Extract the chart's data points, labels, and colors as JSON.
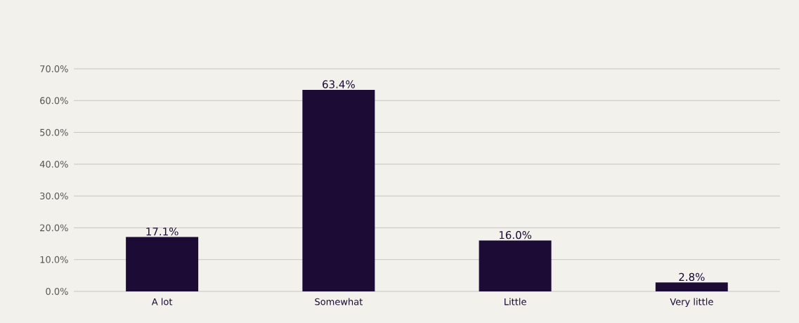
{
  "chart_data": {
    "type": "bar",
    "categories": [
      "A lot",
      "Somewhat",
      "Little",
      "Very little"
    ],
    "values": [
      17.1,
      63.4,
      16.0,
      2.8
    ],
    "value_labels": [
      "17.1%",
      "63.4%",
      "16.0%",
      "2.8%"
    ],
    "color": "#1c0b35",
    "ylim": [
      0,
      70
    ],
    "yticks": [
      {
        "value": 0,
        "label": "0.0%"
      },
      {
        "value": 10,
        "label": "10.0%"
      },
      {
        "value": 20,
        "label": "20.0%"
      },
      {
        "value": 30,
        "label": "30.0%"
      },
      {
        "value": 40,
        "label": "40.0%"
      },
      {
        "value": 50,
        "label": "50.0%"
      },
      {
        "value": 60,
        "label": "60.0%"
      },
      {
        "value": 70,
        "label": "70.0%"
      }
    ],
    "grid": "y"
  }
}
